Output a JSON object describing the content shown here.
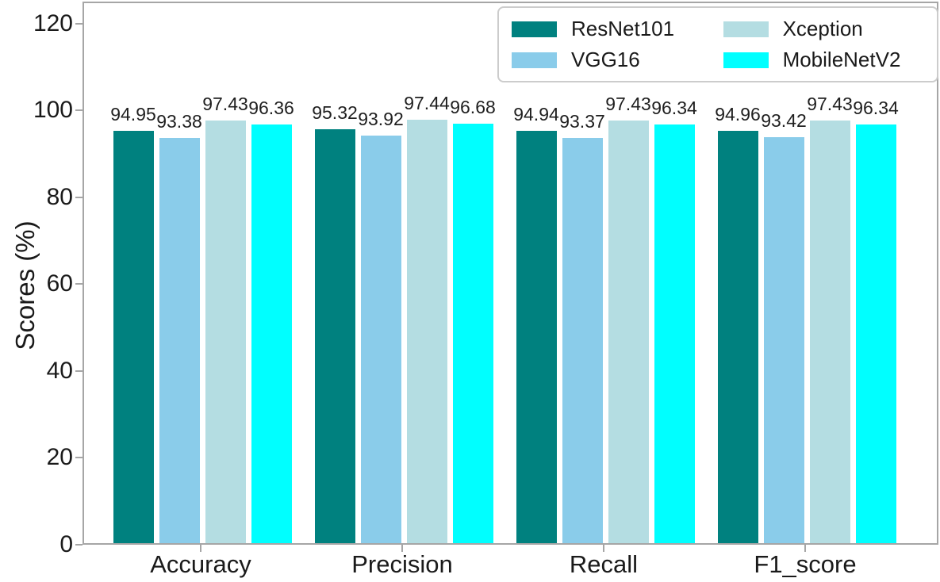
{
  "chart_data": {
    "type": "bar",
    "title": "",
    "xlabel": "",
    "ylabel": "Scores (%)",
    "categories": [
      "Accuracy",
      "Precision",
      "Recall",
      "F1_score"
    ],
    "series": [
      {
        "name": "ResNet101",
        "color": "#00817f",
        "values": [
          94.95,
          95.32,
          94.94,
          94.96
        ]
      },
      {
        "name": "VGG16",
        "color": "#8accea",
        "values": [
          93.38,
          93.92,
          93.37,
          93.42
        ]
      },
      {
        "name": "Xception",
        "color": "#b4dde2",
        "values": [
          97.43,
          97.44,
          97.43,
          97.43
        ]
      },
      {
        "name": "MobileNetV2",
        "color": "#00ffff",
        "values": [
          96.36,
          96.68,
          96.34,
          96.34
        ]
      }
    ],
    "yticks": [
      0,
      20,
      40,
      60,
      80,
      100,
      120
    ],
    "ylim": [
      0,
      125.1
    ],
    "grid": false,
    "legend_position": "upper right",
    "legend_columns": 2,
    "value_label_decimals": 2
  },
  "style": {
    "spine_color": "#a6a6a6",
    "text_color": "#1a1a1a",
    "legend_border_color": "#cccccc",
    "background": "#ffffff"
  }
}
